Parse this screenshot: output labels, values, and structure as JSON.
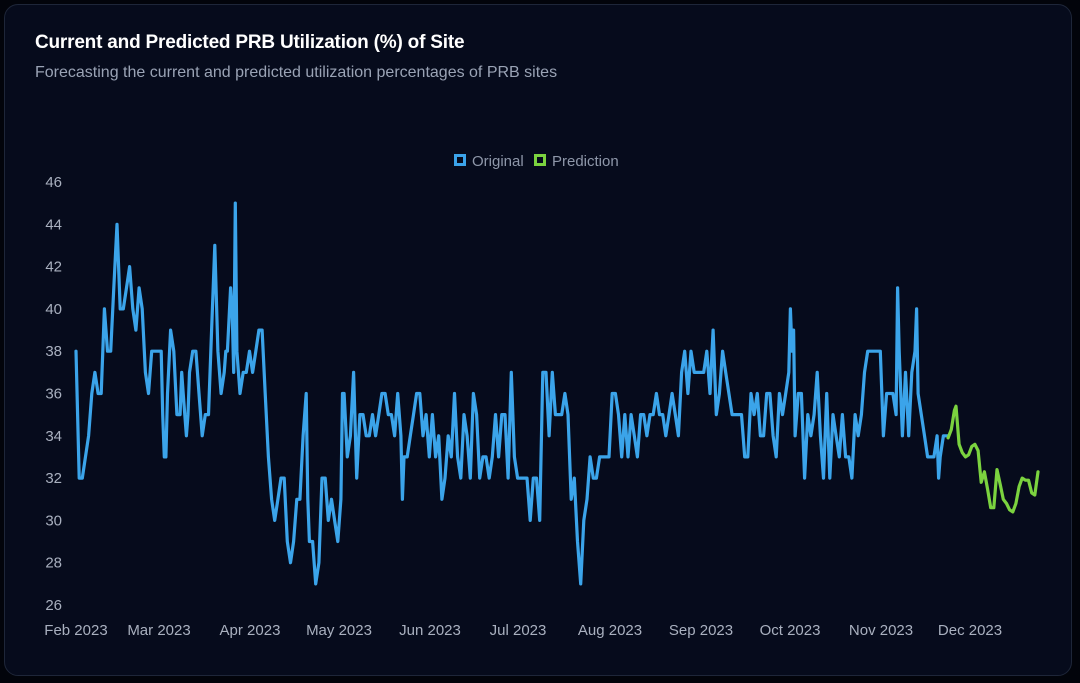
{
  "colors": {
    "original": "#3ba4ea",
    "prediction": "#7bd33f",
    "background": "#060b1c",
    "tick_text": "#a9b0bf"
  },
  "header": {
    "title": "Current and Predicted PRB Utilization (%) of Site",
    "subtitle": "Forecasting the current and predicted utilization percentages of PRB sites"
  },
  "chart_data": {
    "type": "line",
    "title": "Current and Predicted PRB Utilization (%) of Site",
    "subtitle": "Forecasting the current and predicted utilization percentages of PRB sites",
    "xlabel": "",
    "ylabel": "",
    "ylim": [
      26,
      46
    ],
    "yticks": [
      26,
      28,
      30,
      32,
      34,
      36,
      38,
      40,
      42,
      44,
      46
    ],
    "x_tick_labels": [
      "Feb 2023",
      "Mar 2023",
      "Apr 2023",
      "May 2023",
      "Jun 2023",
      "Jul 2023",
      "Aug 2023",
      "Sep 2023",
      "Oct 2023",
      "Nov 2023",
      "Dec 2023"
    ],
    "legend": {
      "position": "top-center",
      "entries": [
        "Original",
        "Prediction"
      ]
    },
    "grid": false,
    "series": [
      {
        "name": "Original",
        "points": [
          [
            0,
            38
          ],
          [
            2,
            32
          ],
          [
            4,
            32
          ],
          [
            8,
            34
          ],
          [
            10,
            36
          ],
          [
            12,
            37
          ],
          [
            14,
            36
          ],
          [
            16,
            36
          ],
          [
            18,
            40
          ],
          [
            20,
            38
          ],
          [
            22,
            38
          ],
          [
            24,
            41
          ],
          [
            26,
            44
          ],
          [
            28,
            40
          ],
          [
            30,
            40
          ],
          [
            32,
            41
          ],
          [
            34,
            42
          ],
          [
            36,
            40
          ],
          [
            38,
            39
          ],
          [
            40,
            41
          ],
          [
            42,
            40
          ],
          [
            44,
            37
          ],
          [
            46,
            36
          ],
          [
            48,
            38
          ],
          [
            50,
            38
          ],
          [
            52,
            38
          ],
          [
            54,
            38
          ],
          [
            55,
            35
          ],
          [
            56,
            33
          ],
          [
            57,
            33
          ],
          [
            58,
            36
          ],
          [
            60,
            39
          ],
          [
            62,
            38
          ],
          [
            64,
            35
          ],
          [
            66,
            35
          ],
          [
            67,
            37
          ],
          [
            68,
            36
          ],
          [
            70,
            34
          ],
          [
            71,
            35
          ],
          [
            72,
            37
          ],
          [
            74,
            38
          ],
          [
            76,
            38
          ],
          [
            78,
            36
          ],
          [
            80,
            34
          ],
          [
            82,
            35
          ],
          [
            84,
            35
          ],
          [
            86,
            39
          ],
          [
            88,
            43
          ],
          [
            90,
            38
          ],
          [
            92,
            36
          ],
          [
            94,
            37
          ],
          [
            95,
            38
          ],
          [
            96,
            38
          ],
          [
            98,
            41
          ],
          [
            99,
            40
          ],
          [
            100,
            37
          ],
          [
            101,
            45
          ],
          [
            102,
            38
          ],
          [
            104,
            36
          ],
          [
            106,
            37
          ],
          [
            108,
            37
          ],
          [
            110,
            38
          ],
          [
            112,
            37
          ],
          [
            114,
            38
          ],
          [
            116,
            39
          ],
          [
            118,
            39
          ],
          [
            120,
            36
          ],
          [
            122,
            33
          ],
          [
            124,
            31
          ],
          [
            126,
            30
          ],
          [
            128,
            31
          ],
          [
            130,
            32
          ],
          [
            132,
            32
          ],
          [
            134,
            29
          ],
          [
            136,
            28
          ],
          [
            138,
            29
          ],
          [
            140,
            31
          ],
          [
            142,
            31
          ],
          [
            144,
            34
          ],
          [
            146,
            36
          ],
          [
            147,
            31
          ],
          [
            148,
            29
          ],
          [
            150,
            29
          ],
          [
            152,
            27
          ],
          [
            154,
            28
          ],
          [
            156,
            32
          ],
          [
            158,
            32
          ],
          [
            160,
            30
          ],
          [
            162,
            31
          ],
          [
            164,
            30
          ],
          [
            166,
            29
          ],
          [
            168,
            31
          ],
          [
            169,
            36
          ],
          [
            170,
            36
          ],
          [
            172,
            33
          ],
          [
            174,
            34
          ],
          [
            176,
            37
          ],
          [
            178,
            32
          ],
          [
            180,
            35
          ],
          [
            182,
            35
          ],
          [
            184,
            34
          ],
          [
            186,
            34
          ],
          [
            188,
            35
          ],
          [
            190,
            34
          ],
          [
            192,
            35
          ],
          [
            194,
            36
          ],
          [
            196,
            36
          ],
          [
            198,
            35
          ],
          [
            200,
            35
          ],
          [
            202,
            34
          ],
          [
            204,
            36
          ],
          [
            206,
            34
          ],
          [
            207,
            31
          ],
          [
            208,
            33
          ],
          [
            210,
            33
          ],
          [
            212,
            34
          ],
          [
            214,
            35
          ],
          [
            216,
            36
          ],
          [
            218,
            36
          ],
          [
            220,
            34
          ],
          [
            222,
            35
          ],
          [
            224,
            33
          ],
          [
            226,
            35
          ],
          [
            228,
            33
          ],
          [
            230,
            34
          ],
          [
            232,
            31
          ],
          [
            234,
            32
          ],
          [
            236,
            34
          ],
          [
            238,
            33
          ],
          [
            240,
            36
          ],
          [
            242,
            33
          ],
          [
            244,
            32
          ],
          [
            246,
            35
          ],
          [
            248,
            34
          ],
          [
            250,
            32
          ],
          [
            252,
            36
          ],
          [
            254,
            35
          ],
          [
            256,
            32
          ],
          [
            258,
            33
          ],
          [
            260,
            33
          ],
          [
            262,
            32
          ],
          [
            264,
            33
          ],
          [
            266,
            35
          ],
          [
            268,
            33
          ],
          [
            270,
            35
          ],
          [
            272,
            35
          ],
          [
            274,
            32
          ],
          [
            276,
            37
          ],
          [
            278,
            33
          ],
          [
            280,
            32
          ],
          [
            282,
            32
          ],
          [
            284,
            32
          ],
          [
            286,
            32
          ],
          [
            288,
            30
          ],
          [
            290,
            32
          ],
          [
            292,
            32
          ],
          [
            294,
            30
          ],
          [
            296,
            37
          ],
          [
            298,
            37
          ],
          [
            300,
            34
          ],
          [
            302,
            37
          ],
          [
            304,
            35
          ],
          [
            306,
            35
          ],
          [
            308,
            35
          ],
          [
            310,
            36
          ],
          [
            312,
            35
          ],
          [
            314,
            31
          ],
          [
            316,
            32
          ],
          [
            318,
            29
          ],
          [
            320,
            27
          ],
          [
            322,
            30
          ],
          [
            324,
            31
          ],
          [
            326,
            33
          ],
          [
            328,
            32
          ],
          [
            330,
            32
          ],
          [
            332,
            33
          ],
          [
            334,
            33
          ],
          [
            336,
            33
          ],
          [
            338,
            33
          ],
          [
            340,
            36
          ],
          [
            342,
            36
          ],
          [
            344,
            35
          ],
          [
            346,
            33
          ],
          [
            348,
            35
          ],
          [
            350,
            33
          ],
          [
            352,
            35
          ],
          [
            354,
            34
          ],
          [
            356,
            33
          ],
          [
            358,
            35
          ],
          [
            360,
            35
          ],
          [
            362,
            34
          ],
          [
            364,
            35
          ],
          [
            366,
            35
          ],
          [
            368,
            36
          ],
          [
            370,
            35
          ],
          [
            372,
            35
          ],
          [
            374,
            34
          ],
          [
            376,
            35
          ],
          [
            378,
            36
          ],
          [
            380,
            35
          ],
          [
            382,
            34
          ],
          [
            384,
            37
          ],
          [
            386,
            38
          ],
          [
            388,
            36
          ],
          [
            390,
            38
          ],
          [
            392,
            37
          ],
          [
            394,
            37
          ],
          [
            396,
            37
          ],
          [
            398,
            37
          ],
          [
            400,
            38
          ],
          [
            402,
            36
          ],
          [
            404,
            39
          ],
          [
            406,
            35
          ],
          [
            408,
            36
          ],
          [
            410,
            38
          ],
          [
            412,
            37
          ],
          [
            414,
            36
          ],
          [
            416,
            35
          ],
          [
            418,
            35
          ],
          [
            420,
            35
          ],
          [
            422,
            35
          ],
          [
            424,
            33
          ],
          [
            426,
            33
          ],
          [
            428,
            36
          ],
          [
            430,
            35
          ],
          [
            432,
            36
          ],
          [
            434,
            34
          ],
          [
            436,
            34
          ],
          [
            438,
            36
          ],
          [
            440,
            36
          ],
          [
            442,
            34
          ],
          [
            444,
            33
          ],
          [
            446,
            36
          ],
          [
            448,
            35
          ],
          [
            450,
            36
          ],
          [
            452,
            37
          ],
          [
            453,
            40
          ],
          [
            454,
            38
          ],
          [
            455,
            39
          ],
          [
            456,
            34
          ],
          [
            458,
            36
          ],
          [
            460,
            36
          ],
          [
            462,
            32
          ],
          [
            464,
            35
          ],
          [
            466,
            34
          ],
          [
            468,
            35
          ],
          [
            470,
            37
          ],
          [
            472,
            34
          ],
          [
            474,
            32
          ],
          [
            476,
            36
          ],
          [
            478,
            32
          ],
          [
            480,
            35
          ],
          [
            482,
            34
          ],
          [
            484,
            33
          ],
          [
            486,
            35
          ],
          [
            488,
            33
          ],
          [
            490,
            33
          ],
          [
            492,
            32
          ],
          [
            494,
            35
          ],
          [
            496,
            34
          ],
          [
            498,
            35
          ],
          [
            500,
            37
          ],
          [
            502,
            38
          ],
          [
            504,
            38
          ],
          [
            506,
            38
          ],
          [
            508,
            38
          ],
          [
            510,
            38
          ],
          [
            512,
            34
          ],
          [
            514,
            36
          ],
          [
            516,
            36
          ],
          [
            518,
            36
          ],
          [
            520,
            35
          ],
          [
            521,
            41
          ],
          [
            522,
            38
          ],
          [
            524,
            34
          ],
          [
            526,
            37
          ],
          [
            528,
            34
          ],
          [
            530,
            37
          ],
          [
            532,
            38
          ],
          [
            533,
            40
          ],
          [
            534,
            36
          ],
          [
            536,
            35
          ],
          [
            538,
            34
          ],
          [
            540,
            33
          ],
          [
            542,
            33
          ],
          [
            544,
            33
          ],
          [
            546,
            34
          ],
          [
            547,
            32
          ],
          [
            548,
            33
          ],
          [
            550,
            34
          ],
          [
            552,
            34
          ],
          [
            553,
            34
          ]
        ]
      },
      {
        "name": "Prediction",
        "points": [
          [
            553,
            33.9
          ],
          [
            555,
            34.3
          ],
          [
            557,
            35.2
          ],
          [
            558,
            35.4
          ],
          [
            560,
            33.6
          ],
          [
            562,
            33.2
          ],
          [
            564,
            33.0
          ],
          [
            566,
            33.1
          ],
          [
            568,
            33.5
          ],
          [
            570,
            33.6
          ],
          [
            572,
            33.3
          ],
          [
            574,
            31.8
          ],
          [
            576,
            32.3
          ],
          [
            578,
            31.5
          ],
          [
            580,
            30.6
          ],
          [
            582,
            30.6
          ],
          [
            584,
            32.4
          ],
          [
            586,
            31.7
          ],
          [
            588,
            31.0
          ],
          [
            590,
            30.8
          ],
          [
            592,
            30.5
          ],
          [
            594,
            30.4
          ],
          [
            596,
            30.8
          ],
          [
            598,
            31.6
          ],
          [
            600,
            32.0
          ],
          [
            602,
            31.9
          ],
          [
            604,
            31.9
          ],
          [
            606,
            31.3
          ],
          [
            608,
            31.2
          ],
          [
            610,
            32.3
          ]
        ]
      }
    ]
  }
}
